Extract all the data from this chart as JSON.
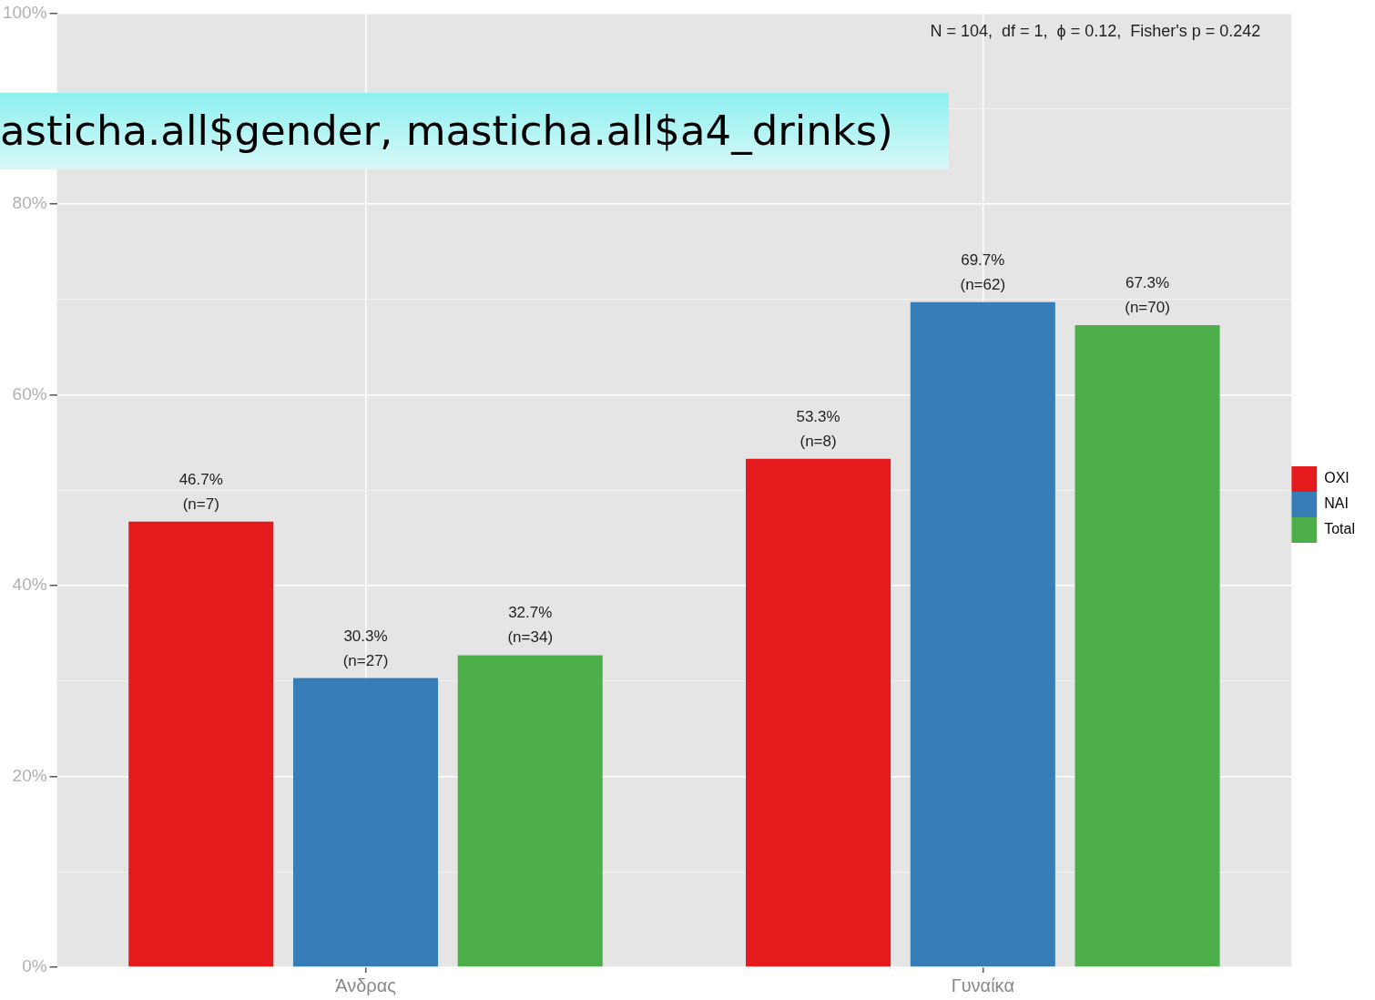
{
  "chart_data": {
    "type": "bar",
    "categories": [
      "Άνδρας",
      "Γυναίκα"
    ],
    "series": [
      {
        "name": "ΟΧΙ",
        "color": "#e41a1c",
        "values": [
          46.7,
          53.3
        ],
        "value_labels": [
          "46.7%\n(n=7)",
          "53.3%\n(n=8)"
        ]
      },
      {
        "name": "ΝΑΙ",
        "color": "#377eb8",
        "values": [
          30.3,
          69.7
        ],
        "value_labels": [
          "30.3%\n(n=27)",
          "69.7%\n(n=62)"
        ]
      },
      {
        "name": "Total",
        "color": "#4daf4a",
        "values": [
          32.7,
          67.3
        ],
        "value_labels": [
          "32.7%\n(n=34)",
          "67.3%\n(n=70)"
        ]
      }
    ],
    "ylim": [
      0,
      100
    ],
    "yticks": [
      {
        "value": 0,
        "label": "0%"
      },
      {
        "value": 10,
        "label": null
      },
      {
        "value": 20,
        "label": "20%"
      },
      {
        "value": 30,
        "label": null
      },
      {
        "value": 40,
        "label": "40%"
      },
      {
        "value": 50,
        "label": null
      },
      {
        "value": 60,
        "label": "60%"
      },
      {
        "value": 70,
        "label": null
      },
      {
        "value": 80,
        "label": "80%"
      },
      {
        "value": 90,
        "label": null
      },
      {
        "value": 100,
        "label": "100%"
      }
    ],
    "grid": true,
    "legend": "right",
    "annotations": [
      "N = 104,  df = 1,  ϕ = 0.12,  Fisher's p = 0.242",
      "asticha.all$gender, masticha.all$a4_drinks)"
    ]
  }
}
